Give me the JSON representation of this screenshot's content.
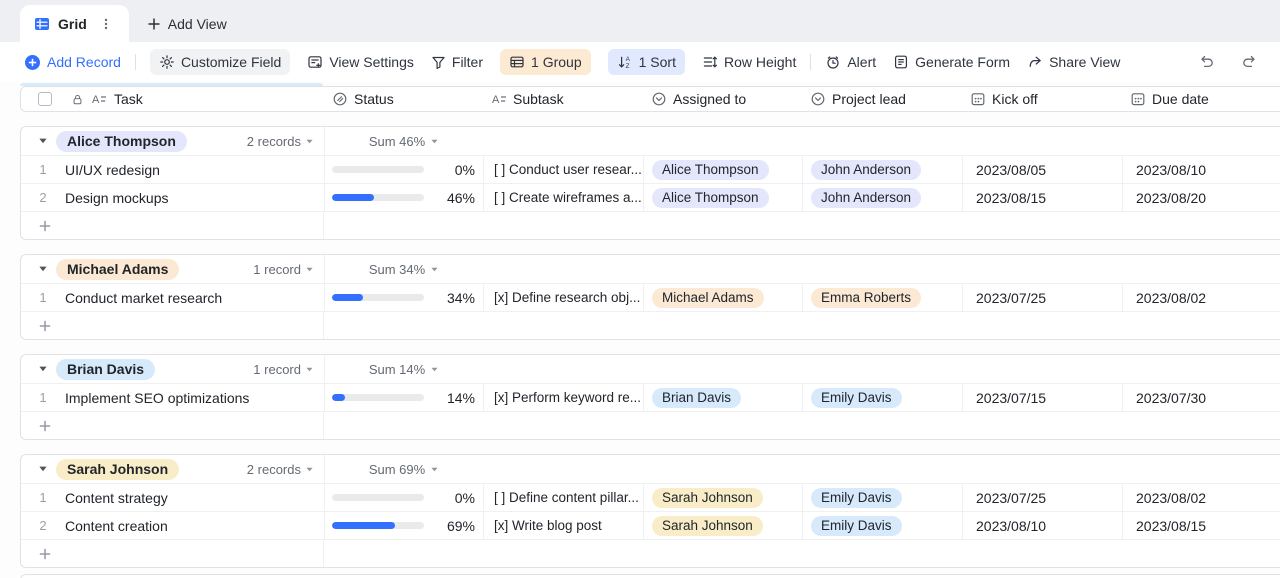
{
  "tabbar": {
    "active_tab": "Grid",
    "add_view": "Add View"
  },
  "toolbar": {
    "add_record": "Add Record",
    "customize_field": "Customize Field",
    "view_settings": "View Settings",
    "filter": "Filter",
    "group": "1 Group",
    "sort": "1 Sort",
    "row_height": "Row Height",
    "alert": "Alert",
    "generate_form": "Generate Form",
    "share_view": "Share View"
  },
  "colors": {
    "accent_blue": "#3370ff",
    "group_badge_orange": "#fdead3",
    "sort_badge_blue": "#e0e9fe",
    "pill_lavender": "#e4e7fc",
    "pill_peach": "#fce9d4",
    "pill_blue": "#d6eafc",
    "pill_yellow": "#f9edc8",
    "progress_track": "#e9eaec"
  },
  "columns": [
    {
      "label": "Task",
      "type": "text",
      "locked": true,
      "icon": "text-field-icon"
    },
    {
      "label": "Status",
      "type": "progress",
      "icon": "progress-field-icon"
    },
    {
      "label": "Subtask",
      "type": "text",
      "icon": "text-field-icon"
    },
    {
      "label": "Assigned to",
      "type": "select",
      "icon": "single-select-icon"
    },
    {
      "label": "Project lead",
      "type": "select",
      "icon": "single-select-icon"
    },
    {
      "label": "Kick off",
      "type": "date",
      "icon": "calendar-icon"
    },
    {
      "label": "Due date",
      "type": "date",
      "icon": "calendar-icon"
    }
  ],
  "groups": [
    {
      "name": "Alice Thompson",
      "pill_color": "#e4e7fc",
      "records": "2 records",
      "sum": "Sum 46%",
      "rows": [
        {
          "num": "1",
          "task": "UI/UX redesign",
          "progress": 0,
          "pct": "0%",
          "subtask": "[ ] Conduct user resear...",
          "assigned": "Alice Thompson",
          "assigned_color": "#e4e7fc",
          "lead": "John Anderson",
          "lead_color": "#e4e7fc",
          "kickoff": "2023/08/05",
          "due": "2023/08/10"
        },
        {
          "num": "2",
          "task": "Design mockups",
          "progress": 46,
          "pct": "46%",
          "subtask": "[ ] Create wireframes a...",
          "assigned": "Alice Thompson",
          "assigned_color": "#e4e7fc",
          "lead": "John Anderson",
          "lead_color": "#e4e7fc",
          "kickoff": "2023/08/15",
          "due": "2023/08/20"
        }
      ]
    },
    {
      "name": "Michael Adams",
      "pill_color": "#fce9d4",
      "records": "1 record",
      "sum": "Sum 34%",
      "rows": [
        {
          "num": "1",
          "task": "Conduct market research",
          "progress": 34,
          "pct": "34%",
          "subtask": "[x] Define research obj...",
          "assigned": "Michael Adams",
          "assigned_color": "#fce9d4",
          "lead": "Emma Roberts",
          "lead_color": "#fce9d4",
          "kickoff": "2023/07/25",
          "due": "2023/08/02"
        }
      ]
    },
    {
      "name": "Brian Davis",
      "pill_color": "#d6eafc",
      "records": "1 record",
      "sum": "Sum 14%",
      "rows": [
        {
          "num": "1",
          "task": "Implement SEO optimizations",
          "progress": 14,
          "pct": "14%",
          "subtask": "[x] Perform keyword re...",
          "assigned": "Brian Davis",
          "assigned_color": "#d6eafc",
          "lead": "Emily Davis",
          "lead_color": "#d6eafc",
          "kickoff": "2023/07/15",
          "due": "2023/07/30"
        }
      ]
    },
    {
      "name": "Sarah Johnson",
      "pill_color": "#f9edc8",
      "records": "2 records",
      "sum": "Sum 69%",
      "rows": [
        {
          "num": "1",
          "task": "Content strategy",
          "progress": 0,
          "pct": "0%",
          "subtask": "[ ] Define content pillar...",
          "assigned": "Sarah Johnson",
          "assigned_color": "#f9edc8",
          "lead": "Emily Davis",
          "lead_color": "#d6eafc",
          "kickoff": "2023/07/25",
          "due": "2023/08/02"
        },
        {
          "num": "2",
          "task": "Content creation",
          "progress": 69,
          "pct": "69%",
          "subtask": "[x] Write blog post",
          "assigned": "Sarah Johnson",
          "assigned_color": "#f9edc8",
          "lead": "Emily Davis",
          "lead_color": "#d6eafc",
          "kickoff": "2023/08/10",
          "due": "2023/08/15"
        }
      ]
    }
  ]
}
